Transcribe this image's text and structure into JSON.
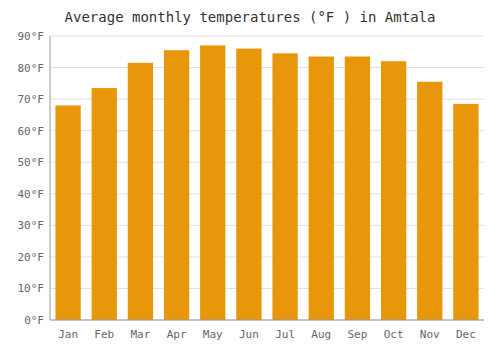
{
  "chart_data": {
    "type": "bar",
    "title": "Average monthly temperatures (°F ) in Amtala",
    "categories": [
      "Jan",
      "Feb",
      "Mar",
      "Apr",
      "May",
      "Jun",
      "Jul",
      "Aug",
      "Sep",
      "Oct",
      "Nov",
      "Dec"
    ],
    "values": [
      68,
      73.5,
      81.5,
      85.5,
      87,
      86,
      84.5,
      83.5,
      83.5,
      82,
      75.5,
      68.5
    ],
    "color": "#E8960A",
    "ylim": [
      0,
      90
    ],
    "yticks": [
      {
        "value": 0,
        "label": "0°F"
      },
      {
        "value": 10,
        "label": "10°F"
      },
      {
        "value": 20,
        "label": "20°F"
      },
      {
        "value": 30,
        "label": "30°F"
      },
      {
        "value": 40,
        "label": "40°F"
      },
      {
        "value": 50,
        "label": "50°F"
      },
      {
        "value": 60,
        "label": "60°F"
      },
      {
        "value": 70,
        "label": "70°F"
      },
      {
        "value": 80,
        "label": "80°F"
      },
      {
        "value": 90,
        "label": "90°F"
      }
    ],
    "grid": true
  }
}
